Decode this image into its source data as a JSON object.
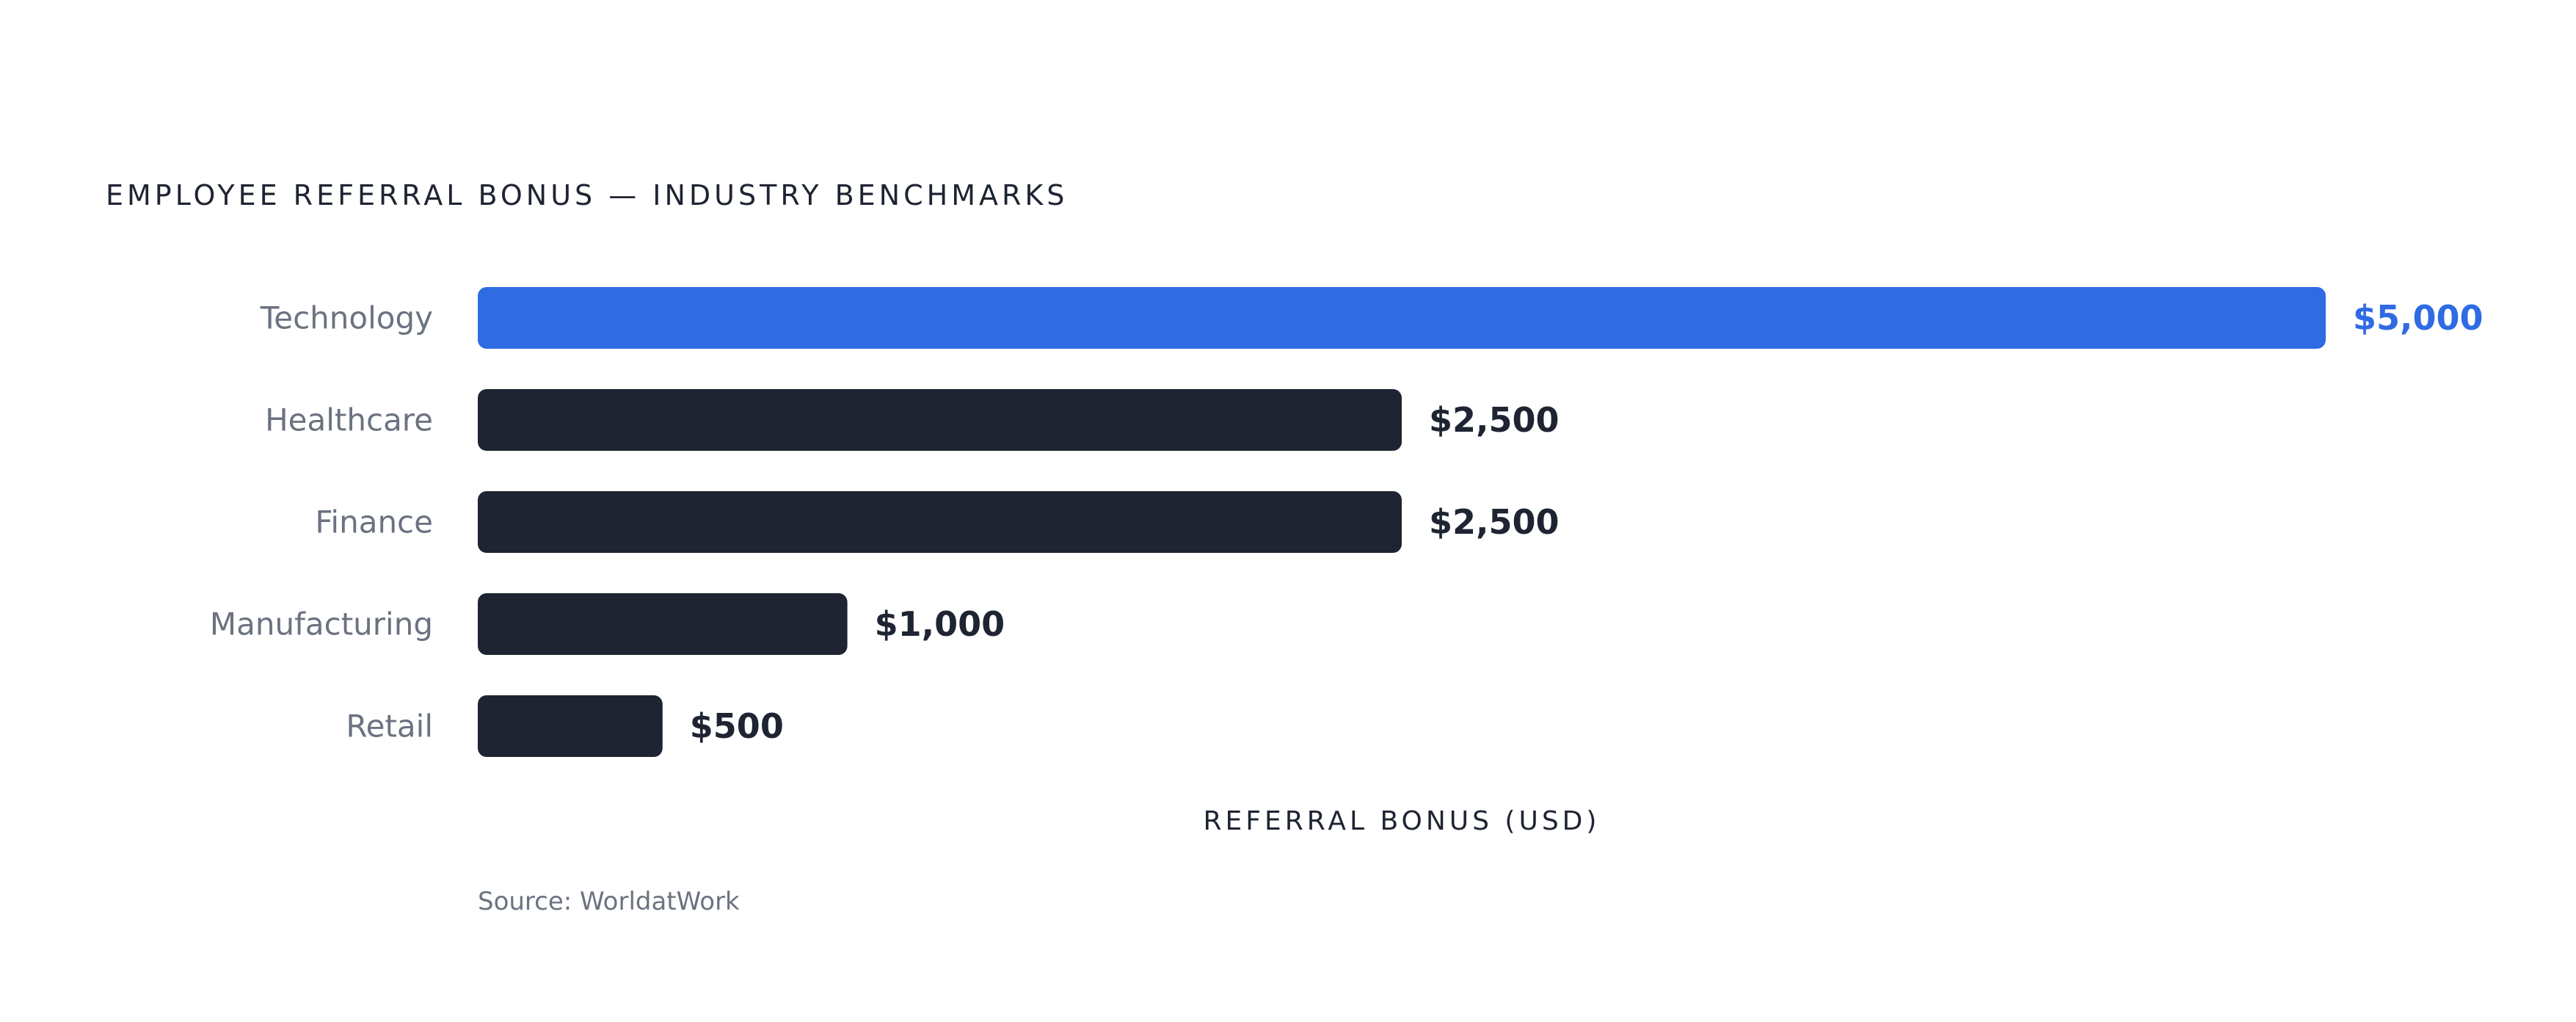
{
  "title": "EMPLOYEE REFERRAL BONUS — INDUSTRY BENCHMARKS",
  "source": "Source: WorldatWork",
  "colors": {
    "highlight": "#2f6be3",
    "bar": "#1e2432",
    "category_label": "#6b7280",
    "text": "#1e2432"
  },
  "chart_data": {
    "type": "bar",
    "orientation": "horizontal",
    "title": "EMPLOYEE REFERRAL BONUS — INDUSTRY BENCHMARKS",
    "xlabel": "REFERRAL BONUS (USD)",
    "ylabel": "",
    "categories": [
      "Technology",
      "Healthcare",
      "Finance",
      "Manufacturing",
      "Retail"
    ],
    "values": [
      5000,
      2500,
      2500,
      1000,
      500
    ],
    "value_labels": [
      "$5,000",
      "$2,500",
      "$2,500",
      "$1,000",
      "$500"
    ],
    "highlight_index": 0,
    "xlim": [
      0,
      5000
    ],
    "grid": false,
    "legend": "none"
  }
}
